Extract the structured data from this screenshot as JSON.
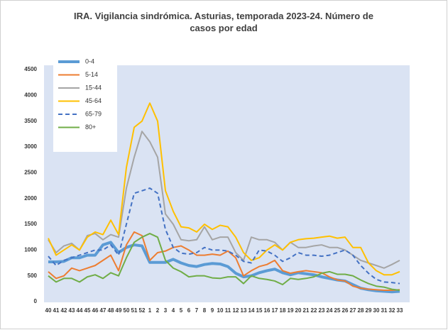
{
  "chart_data": {
    "type": "line",
    "title": "IRA. Vigilancia sindrómica. Asturias, temporada 2023-24. Número de casos por edad",
    "categories": [
      "40",
      "41",
      "42",
      "43",
      "44",
      "45",
      "46",
      "47",
      "48",
      "49",
      "50",
      "51",
      "52",
      "1",
      "2",
      "3",
      "4",
      "5",
      "6",
      "7",
      "8",
      "9",
      "10",
      "11",
      "12",
      "13",
      "14",
      "15",
      "16",
      "17",
      "18",
      "19",
      "20",
      "21",
      "22",
      "23",
      "24",
      "25",
      "26",
      "27",
      "28",
      "29",
      "30",
      "31",
      "32",
      "33"
    ],
    "ylim": [
      0,
      4500
    ],
    "yticks": [
      0,
      500,
      1000,
      1500,
      2000,
      2500,
      3000,
      3500,
      4000,
      4500
    ],
    "grid": false,
    "legend": "upper left",
    "series": [
      {
        "name": "0-4",
        "color": "#5b9bd5",
        "line_width": 4,
        "line_style": "solid",
        "values": [
          770,
          770,
          780,
          850,
          850,
          900,
          900,
          1100,
          1150,
          950,
          1050,
          1100,
          1080,
          760,
          760,
          760,
          820,
          750,
          700,
          680,
          720,
          740,
          730,
          680,
          550,
          480,
          500,
          560,
          600,
          630,
          560,
          520,
          560,
          540,
          520,
          480,
          450,
          420,
          400,
          330,
          260,
          230,
          210,
          200,
          190,
          200
        ]
      },
      {
        "name": "5-14",
        "color": "#ed7d31",
        "line_width": 2,
        "line_style": "solid",
        "values": [
          580,
          450,
          500,
          650,
          600,
          650,
          700,
          800,
          900,
          600,
          1100,
          1350,
          1280,
          800,
          950,
          980,
          1050,
          1080,
          1000,
          900,
          900,
          920,
          900,
          980,
          850,
          500,
          600,
          680,
          720,
          800,
          600,
          550,
          580,
          600,
          580,
          560,
          480,
          420,
          400,
          300,
          260,
          240,
          230,
          220,
          220,
          230
        ]
      },
      {
        "name": "15-44",
        "color": "#a5a5a5",
        "line_width": 2,
        "line_style": "solid",
        "values": [
          1200,
          950,
          1080,
          1130,
          1000,
          1280,
          1320,
          1200,
          1300,
          1250,
          2200,
          2800,
          3300,
          3100,
          2800,
          1700,
          1500,
          1200,
          1180,
          1200,
          1450,
          1200,
          1250,
          1250,
          950,
          800,
          1250,
          1200,
          1200,
          1150,
          1000,
          1150,
          1050,
          1050,
          1080,
          1100,
          1050,
          1050,
          1000,
          900,
          800,
          750,
          700,
          650,
          720,
          800
        ]
      },
      {
        "name": "45-64",
        "color": "#ffc000",
        "line_width": 2,
        "line_style": "solid",
        "values": [
          1230,
          900,
          1000,
          1100,
          1000,
          1250,
          1350,
          1300,
          1580,
          1300,
          2600,
          3380,
          3500,
          3850,
          3500,
          2150,
          1750,
          1450,
          1430,
          1350,
          1500,
          1400,
          1480,
          1450,
          1250,
          950,
          800,
          850,
          1000,
          1100,
          1000,
          1150,
          1200,
          1220,
          1230,
          1250,
          1270,
          1230,
          1250,
          1050,
          1050,
          750,
          600,
          520,
          520,
          580
        ]
      },
      {
        "name": "65-79",
        "color": "#4472c4",
        "line_width": 2,
        "line_style": "dashed",
        "values": [
          880,
          700,
          800,
          850,
          900,
          950,
          1000,
          1000,
          1100,
          900,
          1500,
          2100,
          2150,
          2200,
          2100,
          1400,
          1050,
          940,
          920,
          950,
          1050,
          1000,
          1000,
          980,
          900,
          780,
          750,
          1000,
          980,
          900,
          780,
          850,
          950,
          900,
          900,
          880,
          900,
          950,
          1000,
          900,
          700,
          550,
          430,
          380,
          370,
          350
        ]
      },
      {
        "name": "80+",
        "color": "#70ad47",
        "line_width": 2,
        "line_style": "solid",
        "values": [
          500,
          380,
          450,
          450,
          380,
          480,
          520,
          450,
          560,
          500,
          850,
          1150,
          1250,
          1320,
          1250,
          800,
          650,
          580,
          480,
          500,
          500,
          460,
          450,
          480,
          480,
          350,
          500,
          450,
          430,
          400,
          330,
          450,
          430,
          450,
          480,
          550,
          580,
          530,
          530,
          500,
          420,
          350,
          300,
          280,
          240,
          220
        ]
      }
    ]
  }
}
